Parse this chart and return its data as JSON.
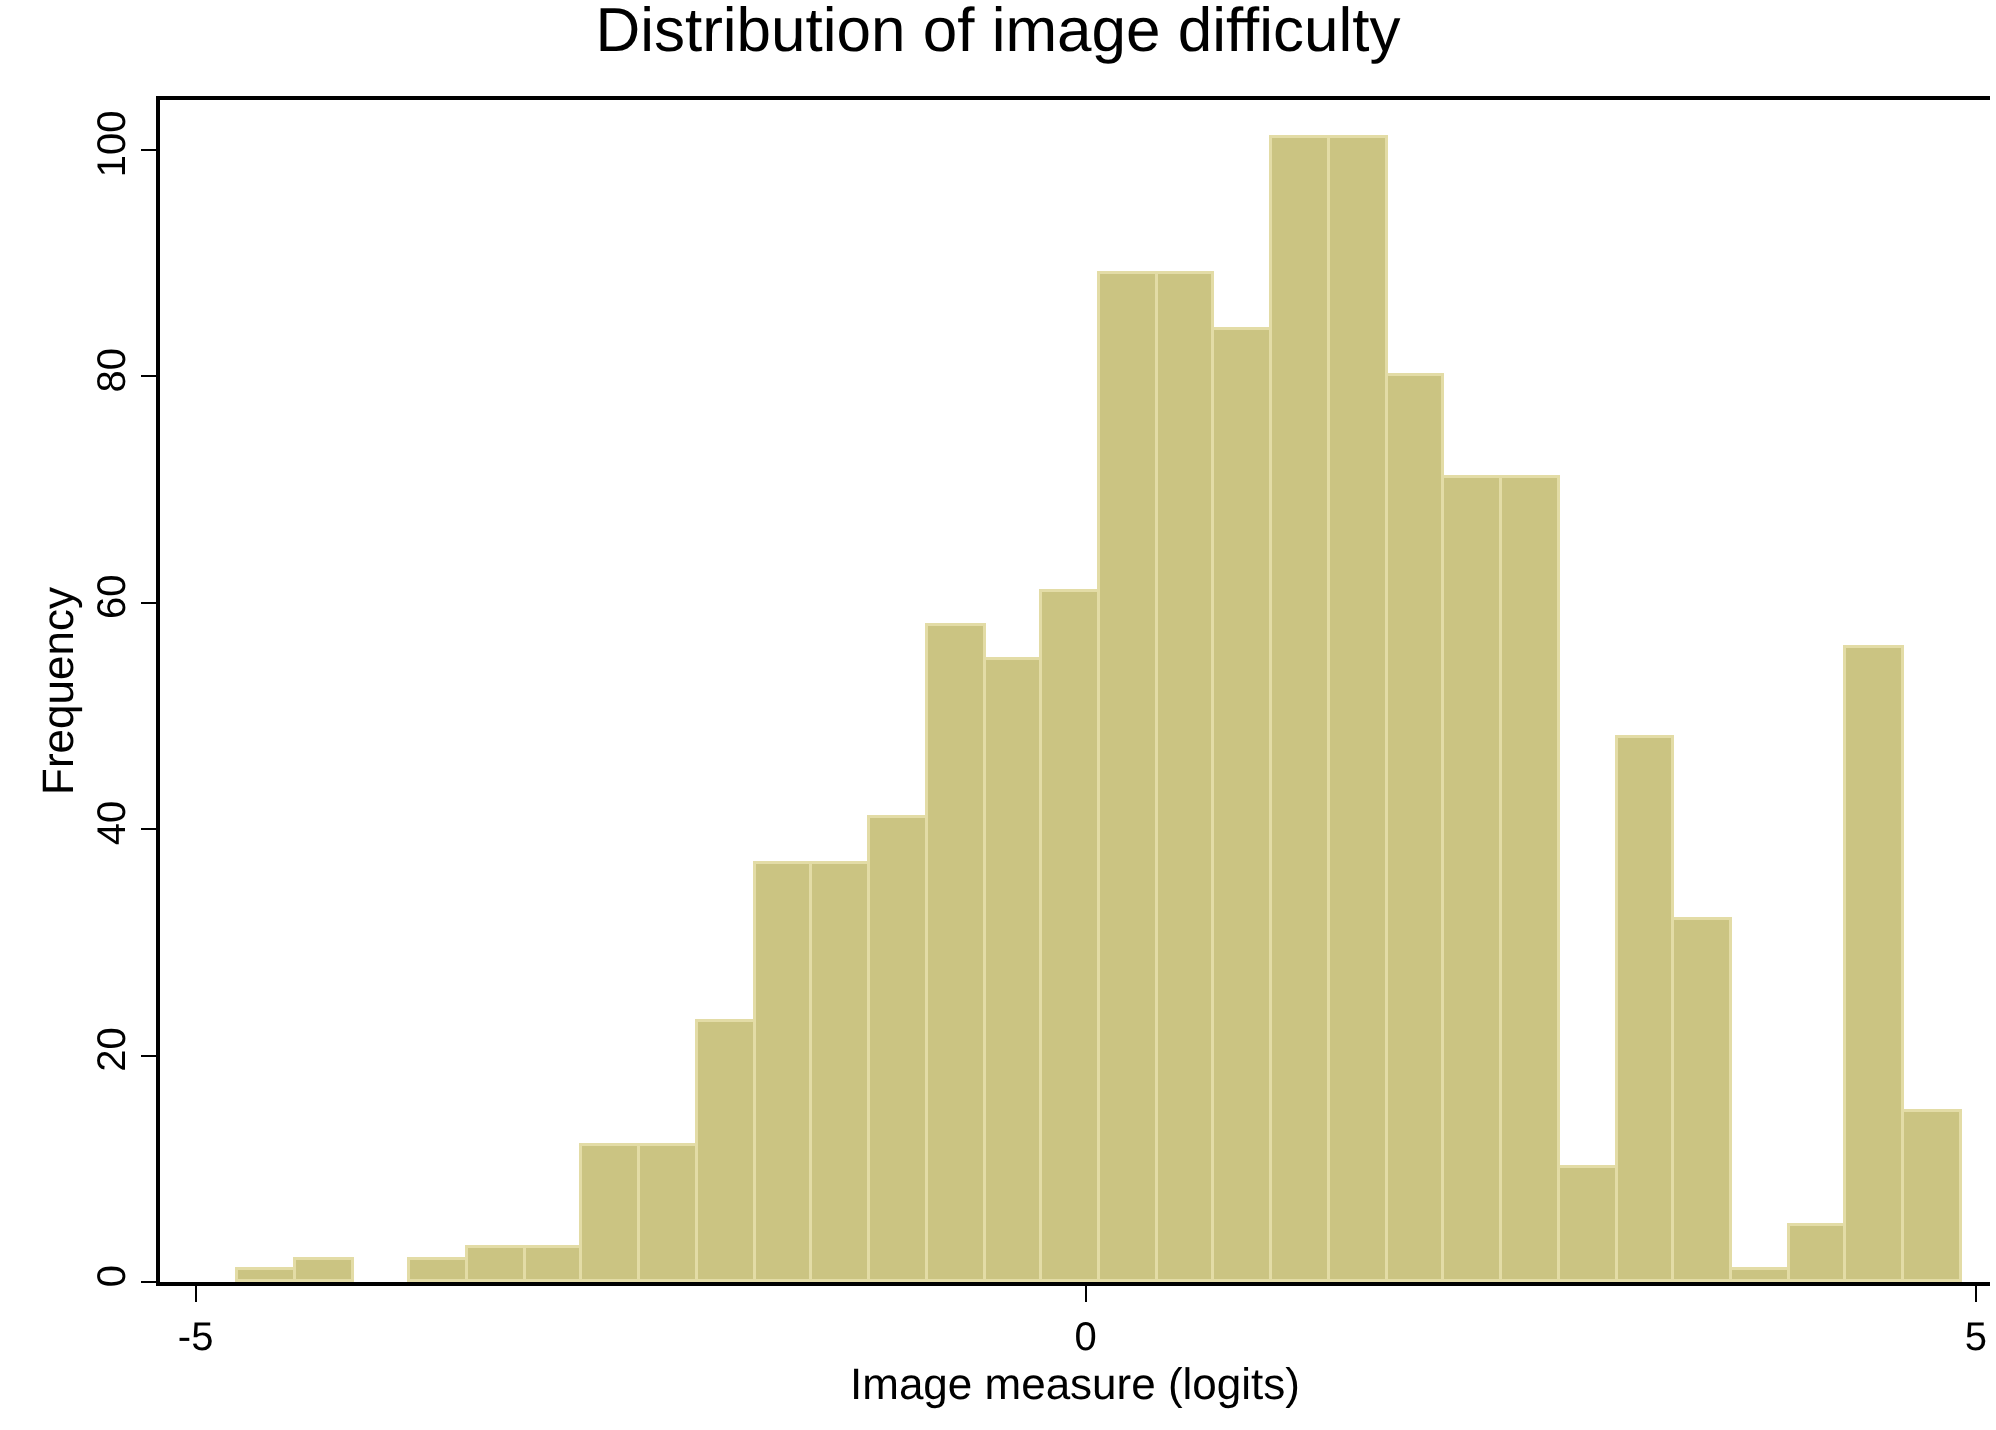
{
  "chart_data": {
    "type": "histogram",
    "title": "Distribution of image difficulty",
    "xlabel": "Image measure (logits)",
    "ylabel": "Frequency",
    "bins": [
      -4.76,
      -4.437,
      -4.115,
      -3.792,
      -3.469,
      -3.147,
      -2.824,
      -2.501,
      -2.178,
      -1.856,
      -1.533,
      -1.21,
      -0.888,
      -0.565,
      -0.242,
      0.081,
      0.403,
      0.726,
      1.049,
      1.371,
      1.694,
      2.017,
      2.339,
      2.662,
      2.985,
      3.308,
      3.63,
      3.953,
      4.276,
      4.598,
      4.921
    ],
    "values": [
      1,
      2,
      0,
      2,
      3,
      3,
      12,
      12,
      23,
      37,
      37,
      41,
      58,
      55,
      61,
      89,
      89,
      84,
      101,
      101,
      80,
      71,
      71,
      10,
      48,
      32,
      1,
      5,
      56,
      15
    ],
    "color": "#cbc482",
    "xlim": [
      -5.2,
      5.08
    ],
    "xticks": [
      -5,
      0,
      5
    ],
    "ylim": [
      0,
      104.4
    ],
    "yticks": [
      0,
      20,
      40,
      60,
      80,
      100
    ]
  }
}
